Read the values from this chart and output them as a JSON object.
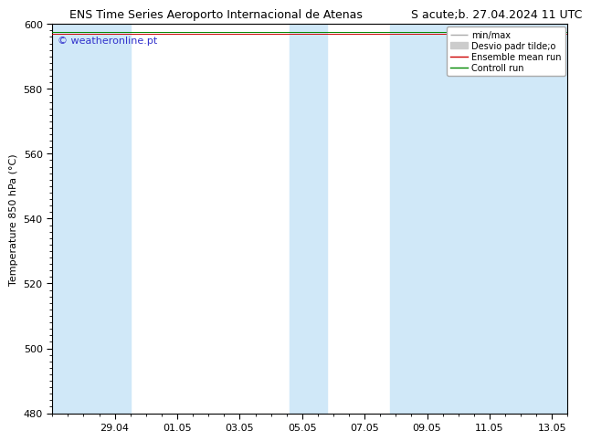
{
  "title": "ENS Time Series Aeroporto Internacional de Atenas",
  "subtitle": "S acute;b. 27.04.2024 11 UTC",
  "ylabel": "Temperature 850 hPa (°C)",
  "watermark": "© weatheronline.pt",
  "watermark_color": "#3333cc",
  "ylim": [
    480,
    600
  ],
  "yticks": [
    480,
    500,
    520,
    540,
    560,
    580,
    600
  ],
  "xtick_labels": [
    "29.04",
    "01.05",
    "03.05",
    "05.05",
    "07.05",
    "09.05",
    "11.05",
    "13.05"
  ],
  "xtick_positions": [
    2,
    4,
    6,
    8,
    10,
    12,
    14,
    16
  ],
  "band_color": "#d0e8f8",
  "legend_minmax_color": "#aaaaaa",
  "legend_std_color": "#cccccc",
  "legend_mean_color": "#cc0000",
  "legend_control_color": "#008800",
  "background_color": "#ffffff",
  "title_fontsize": 9,
  "axis_fontsize": 8,
  "tick_fontsize": 8,
  "watermark_fontsize": 8,
  "legend_fontsize": 7
}
